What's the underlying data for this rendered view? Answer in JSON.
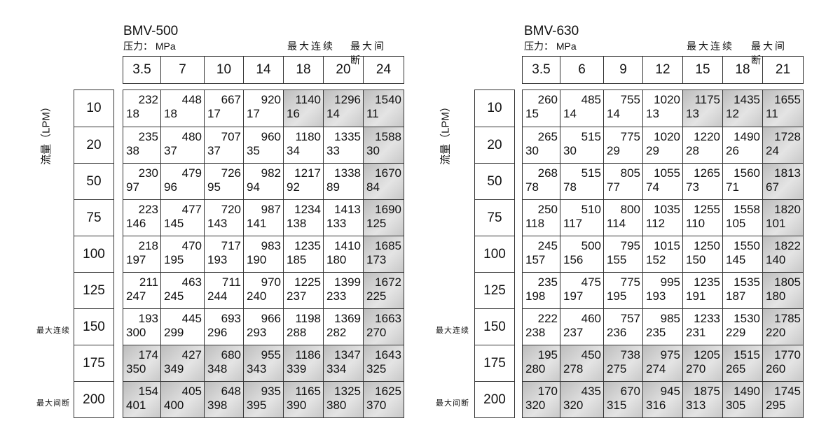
{
  "flow_axis_label": "流量（LPM）",
  "side_labels": {
    "continuous": "最大连续",
    "intermittent": "最大间断"
  },
  "tables": [
    {
      "model": "BMV-500",
      "pressure_unit": "压力： MPa",
      "max_continuous": "最大连续",
      "max_intermittent": "最大间断",
      "pressures": [
        "3.5",
        "7",
        "10",
        "14",
        "18",
        "20",
        "24"
      ],
      "flows": [
        "10",
        "20",
        "50",
        "75",
        "100",
        "125",
        "150",
        "175",
        "200"
      ],
      "rows": [
        [
          [
            "232",
            "18"
          ],
          [
            "448",
            "18"
          ],
          [
            "667",
            "17"
          ],
          [
            "920",
            "17"
          ],
          [
            "1140",
            "16"
          ],
          [
            "1296",
            "14"
          ],
          [
            "1540",
            "11"
          ]
        ],
        [
          [
            "235",
            "38"
          ],
          [
            "480",
            "37"
          ],
          [
            "707",
            "37"
          ],
          [
            "960",
            "35"
          ],
          [
            "1180",
            "34"
          ],
          [
            "1335",
            "33"
          ],
          [
            "1588",
            "30"
          ]
        ],
        [
          [
            "230",
            "97"
          ],
          [
            "479",
            "96"
          ],
          [
            "726",
            "95"
          ],
          [
            "982",
            "94"
          ],
          [
            "1217",
            "92"
          ],
          [
            "1338",
            "89"
          ],
          [
            "1670",
            "84"
          ]
        ],
        [
          [
            "223",
            "146"
          ],
          [
            "477",
            "145"
          ],
          [
            "720",
            "143"
          ],
          [
            "987",
            "141"
          ],
          [
            "1234",
            "138"
          ],
          [
            "1413",
            "133"
          ],
          [
            "1690",
            "125"
          ]
        ],
        [
          [
            "218",
            "197"
          ],
          [
            "470",
            "195"
          ],
          [
            "717",
            "193"
          ],
          [
            "983",
            "190"
          ],
          [
            "1235",
            "185"
          ],
          [
            "1410",
            "180"
          ],
          [
            "1685",
            "173"
          ]
        ],
        [
          [
            "211",
            "247"
          ],
          [
            "463",
            "245"
          ],
          [
            "711",
            "244"
          ],
          [
            "970",
            "240"
          ],
          [
            "1225",
            "237"
          ],
          [
            "1399",
            "233"
          ],
          [
            "1672",
            "225"
          ]
        ],
        [
          [
            "193",
            "300"
          ],
          [
            "445",
            "299"
          ],
          [
            "693",
            "296"
          ],
          [
            "966",
            "293"
          ],
          [
            "1198",
            "288"
          ],
          [
            "1369",
            "282"
          ],
          [
            "1663",
            "270"
          ]
        ],
        [
          [
            "174",
            "350"
          ],
          [
            "427",
            "349"
          ],
          [
            "680",
            "348"
          ],
          [
            "955",
            "343"
          ],
          [
            "1186",
            "339"
          ],
          [
            "1347",
            "334"
          ],
          [
            "1643",
            "325"
          ]
        ],
        [
          [
            "154",
            "401"
          ],
          [
            "405",
            "400"
          ],
          [
            "648",
            "398"
          ],
          [
            "935",
            "395"
          ],
          [
            "1165",
            "390"
          ],
          [
            "1325",
            "380"
          ],
          [
            "1625",
            "370"
          ]
        ]
      ]
    },
    {
      "model": "BMV-630",
      "pressure_unit": "压力： MPa",
      "max_continuous": "最大连续",
      "max_intermittent": "最大间断",
      "pressures": [
        "3.5",
        "6",
        "9",
        "12",
        "15",
        "18",
        "21"
      ],
      "flows": [
        "10",
        "20",
        "50",
        "75",
        "100",
        "125",
        "150",
        "175",
        "200"
      ],
      "rows": [
        [
          [
            "260",
            "15"
          ],
          [
            "485",
            "14"
          ],
          [
            "755",
            "14"
          ],
          [
            "1020",
            "13"
          ],
          [
            "1175",
            "13"
          ],
          [
            "1435",
            "12"
          ],
          [
            "1655",
            "11"
          ]
        ],
        [
          [
            "265",
            "30"
          ],
          [
            "515",
            "30"
          ],
          [
            "775",
            "29"
          ],
          [
            "1020",
            "29"
          ],
          [
            "1220",
            "28"
          ],
          [
            "1490",
            "26"
          ],
          [
            "1728",
            "24"
          ]
        ],
        [
          [
            "268",
            "78"
          ],
          [
            "515",
            "78"
          ],
          [
            "805",
            "77"
          ],
          [
            "1055",
            "74"
          ],
          [
            "1265",
            "73"
          ],
          [
            "1560",
            "71"
          ],
          [
            "1813",
            "67"
          ]
        ],
        [
          [
            "250",
            "118"
          ],
          [
            "510",
            "117"
          ],
          [
            "800",
            "114"
          ],
          [
            "1035",
            "112"
          ],
          [
            "1255",
            "110"
          ],
          [
            "1558",
            "105"
          ],
          [
            "1820",
            "101"
          ]
        ],
        [
          [
            "245",
            "157"
          ],
          [
            "500",
            "156"
          ],
          [
            "795",
            "155"
          ],
          [
            "1015",
            "152"
          ],
          [
            "1250",
            "150"
          ],
          [
            "1550",
            "145"
          ],
          [
            "1822",
            "140"
          ]
        ],
        [
          [
            "235",
            "198"
          ],
          [
            "475",
            "197"
          ],
          [
            "775",
            "195"
          ],
          [
            "995",
            "193"
          ],
          [
            "1235",
            "191"
          ],
          [
            "1535",
            "187"
          ],
          [
            "1805",
            "180"
          ]
        ],
        [
          [
            "222",
            "238"
          ],
          [
            "460",
            "237"
          ],
          [
            "757",
            "236"
          ],
          [
            "985",
            "235"
          ],
          [
            "1233",
            "231"
          ],
          [
            "1530",
            "229"
          ],
          [
            "1785",
            "220"
          ]
        ],
        [
          [
            "195",
            "280"
          ],
          [
            "450",
            "278"
          ],
          [
            "738",
            "275"
          ],
          [
            "975",
            "274"
          ],
          [
            "1205",
            "270"
          ],
          [
            "1515",
            "265"
          ],
          [
            "1770",
            "260"
          ]
        ],
        [
          [
            "170",
            "320"
          ],
          [
            "435",
            "320"
          ],
          [
            "670",
            "315"
          ],
          [
            "945",
            "316"
          ],
          [
            "1875",
            "313"
          ],
          [
            "1490",
            "305"
          ],
          [
            "1745",
            "295"
          ]
        ]
      ]
    }
  ]
}
